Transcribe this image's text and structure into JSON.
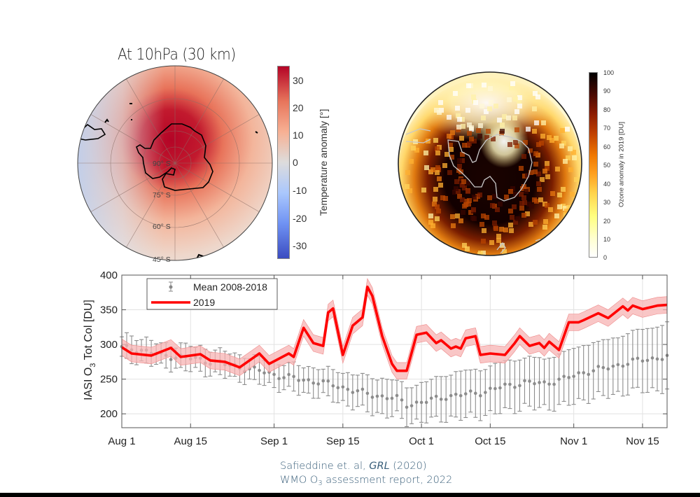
{
  "map_temperature": {
    "title": "At 10hPa (30 km)",
    "latitude_labels": [
      "90° S",
      "75° S",
      "60° S",
      "45° S"
    ],
    "colorbar": {
      "label": "Temperature anomaly [°]",
      "ticks": [
        "30",
        "20",
        "10",
        "0",
        "-10",
        "-20",
        "-30"
      ],
      "range": [
        -35,
        35
      ],
      "colormap": "blue-white-red (diverging)"
    }
  },
  "map_ozone": {
    "colorbar": {
      "label": "Ozone anomaly in 2019 [DU]",
      "ticks": [
        "100",
        "90",
        "80",
        "70",
        "60",
        "50",
        "40",
        "30",
        "20",
        "10",
        "0"
      ],
      "range": [
        0,
        100
      ],
      "colormap": "hot (white-yellow-orange-black)"
    }
  },
  "chart_data": {
    "type": "line",
    "title": "",
    "xlabel": "",
    "ylabel": "IASI O3 Tot Col [DU]",
    "ylim": [
      180,
      400
    ],
    "yticks": [
      200,
      250,
      300,
      350,
      400
    ],
    "xlim_days_since_aug1": [
      0,
      111
    ],
    "xticks": [
      {
        "label": "Aug 1",
        "day": 0
      },
      {
        "label": "Aug 15",
        "day": 14
      },
      {
        "label": "Sep 1",
        "day": 31
      },
      {
        "label": "Sep 15",
        "day": 45
      },
      {
        "label": "Oct 1",
        "day": 61
      },
      {
        "label": "Oct 15",
        "day": 75
      },
      {
        "label": "Nov 1",
        "day": 92
      },
      {
        "label": "Nov 15",
        "day": 106
      }
    ],
    "grid": true,
    "legend": {
      "placement": "top-left",
      "entries": [
        "Mean 2008-2018",
        "2019"
      ]
    },
    "colors": {
      "y2019": "#ff0000",
      "y2019_band": "#f4a5a5",
      "mean": "#8c8c8c"
    },
    "series": [
      {
        "name": "2019",
        "style": "thick line with shaded uncertainty band (about ±12 DU)",
        "points": [
          [
            0,
            296
          ],
          [
            2,
            287
          ],
          [
            6,
            284
          ],
          [
            10,
            295
          ],
          [
            12,
            282
          ],
          [
            16,
            286
          ],
          [
            18,
            277
          ],
          [
            21,
            275
          ],
          [
            24,
            267
          ],
          [
            28,
            287
          ],
          [
            30,
            272
          ],
          [
            34,
            287
          ],
          [
            35,
            282
          ],
          [
            37,
            324
          ],
          [
            39,
            302
          ],
          [
            41,
            298
          ],
          [
            42,
            346
          ],
          [
            43,
            352
          ],
          [
            45,
            285
          ],
          [
            47,
            327
          ],
          [
            49,
            339
          ],
          [
            50,
            383
          ],
          [
            51,
            370
          ],
          [
            53,
            312
          ],
          [
            55,
            272
          ],
          [
            56,
            262
          ],
          [
            58,
            262
          ],
          [
            60,
            314
          ],
          [
            62,
            317
          ],
          [
            64,
            302
          ],
          [
            65,
            306
          ],
          [
            67,
            294
          ],
          [
            68,
            297
          ],
          [
            69,
            294
          ],
          [
            70,
            309
          ],
          [
            72,
            312
          ],
          [
            73,
            285
          ],
          [
            75,
            287
          ],
          [
            78,
            285
          ],
          [
            80,
            302
          ],
          [
            81,
            312
          ],
          [
            83,
            298
          ],
          [
            85,
            302
          ],
          [
            86,
            295
          ],
          [
            87,
            304
          ],
          [
            89,
            292
          ],
          [
            91,
            332
          ],
          [
            93,
            332
          ],
          [
            94,
            335
          ],
          [
            97,
            345
          ],
          [
            99,
            338
          ],
          [
            102,
            355
          ],
          [
            103,
            349
          ],
          [
            104,
            356
          ],
          [
            106,
            351
          ],
          [
            109,
            356
          ],
          [
            111,
            357
          ]
        ],
        "band_halfwidth": 12
      },
      {
        "name": "Mean 2008-2018",
        "style": "gray dots with error bars",
        "anchors": [
          [
            0,
            295,
            14
          ],
          [
            4,
            292,
            14
          ],
          [
            8,
            284,
            12
          ],
          [
            12,
            282,
            14
          ],
          [
            16,
            278,
            14
          ],
          [
            20,
            273,
            14
          ],
          [
            24,
            267,
            14
          ],
          [
            28,
            262,
            14
          ],
          [
            32,
            255,
            14
          ],
          [
            36,
            250,
            16
          ],
          [
            40,
            246,
            16
          ],
          [
            44,
            240,
            18
          ],
          [
            48,
            232,
            20
          ],
          [
            52,
            226,
            22
          ],
          [
            56,
            222,
            22
          ],
          [
            58,
            213,
            22
          ],
          [
            62,
            218,
            24
          ],
          [
            66,
            225,
            28
          ],
          [
            70,
            228,
            30
          ],
          [
            74,
            232,
            30
          ],
          [
            78,
            240,
            32
          ],
          [
            82,
            245,
            32
          ],
          [
            86,
            244,
            32
          ],
          [
            90,
            250,
            34
          ],
          [
            94,
            260,
            36
          ],
          [
            98,
            265,
            36
          ],
          [
            102,
            272,
            38
          ],
          [
            106,
            278,
            40
          ],
          [
            111,
            282,
            44
          ]
        ]
      }
    ]
  },
  "credit": {
    "line1_author": "Safieddine et. al, ",
    "line1_journal": "GRL",
    "line1_year": " (2020)",
    "line2_pre": "WMO O",
    "line2_sub": "3",
    "line2_post": " assessment report, 2022"
  }
}
